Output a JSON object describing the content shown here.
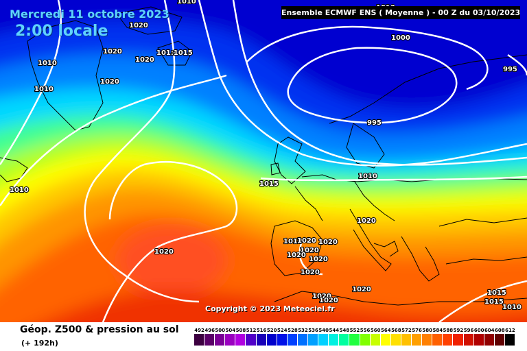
{
  "header": {
    "date": "Mercredi 11 octobre 2023",
    "time": "2:00 locale",
    "run_info": "Ensemble ECMWF ENS  ( Moyenne )  -  00 Z du 03/10/2023"
  },
  "copyright": "Copyright © 2023 Meteociel.fr",
  "footer": {
    "title": "Géop. Z500 & pression au sol",
    "subtitle": "(+ 192h)"
  },
  "scale": {
    "ticks": [
      "492",
      "496",
      "500",
      "504",
      "508",
      "512",
      "516",
      "520",
      "524",
      "528",
      "532",
      "536",
      "540",
      "544",
      "548",
      "552",
      "556",
      "560",
      "564",
      "568",
      "572",
      "576",
      "580",
      "584",
      "588",
      "592",
      "596",
      "600",
      "604",
      "608",
      "612"
    ],
    "colors": [
      "#3c0040",
      "#5a0068",
      "#7a0096",
      "#9a00c0",
      "#b000e0",
      "#5000c8",
      "#1800b8",
      "#0000cc",
      "#0010e8",
      "#0040ff",
      "#0070ff",
      "#00a0ff",
      "#00d0ff",
      "#00f0e0",
      "#00ffa0",
      "#20ff40",
      "#80ff00",
      "#c8ff00",
      "#ffff00",
      "#ffe000",
      "#ffc000",
      "#ffa000",
      "#ff8000",
      "#ff6000",
      "#ff4000",
      "#f02000",
      "#d01000",
      "#b00000",
      "#900000",
      "#600000",
      "#000000"
    ]
  },
  "isobars": [
    "1020",
    "1020",
    "1020",
    "101:1015",
    "1010",
    "1010",
    "1020",
    "1000",
    "995",
    "995",
    "1015",
    "1010",
    "1020",
    "1020",
    "1010",
    "1020",
    "1020",
    "1020",
    "1020",
    "1020",
    "1020",
    "1020",
    "1020",
    "1020",
    "1020",
    "1015",
    "1015",
    "1010",
    "1010",
    "1010",
    "1010"
  ]
}
